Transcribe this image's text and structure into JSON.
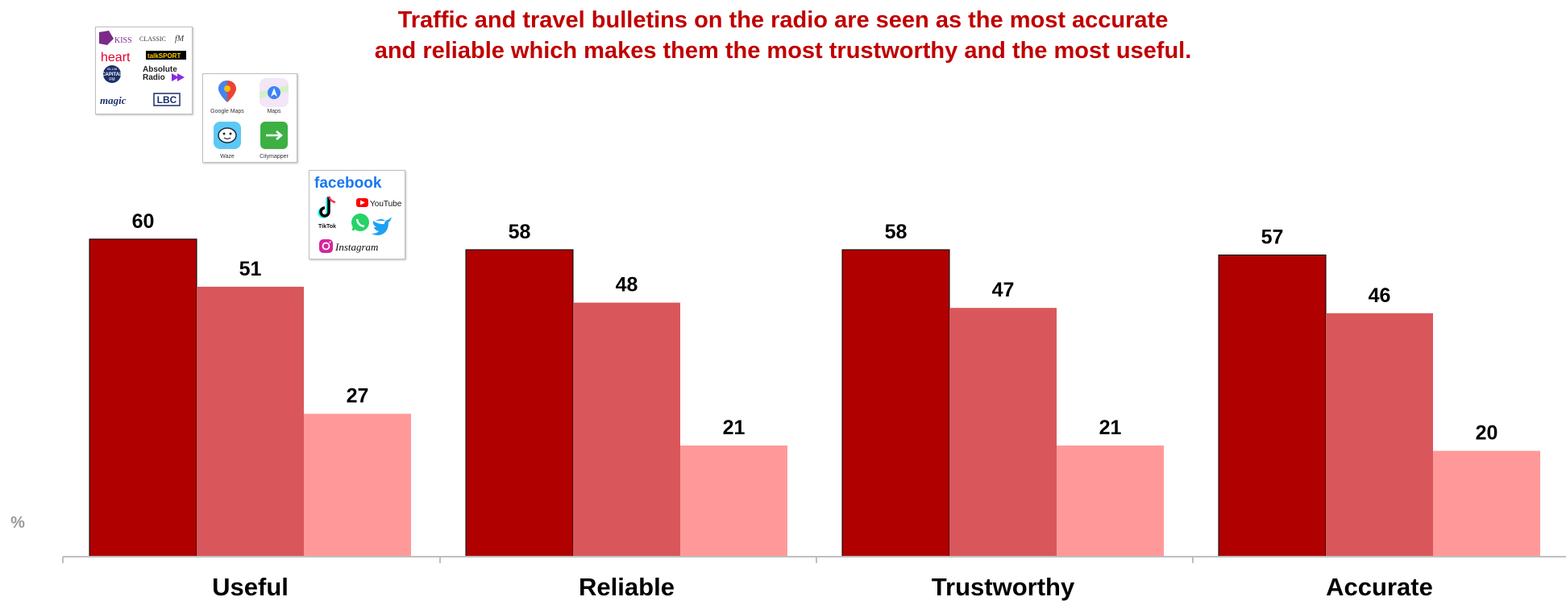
{
  "title_line1": "Traffic and travel bulletins on the radio are seen as the most accurate",
  "title_line2": "and reliable which makes them the most trustworthy and the most useful.",
  "unit_label": "%",
  "colors": {
    "title": "#c00000",
    "series1": "#b00000",
    "series2": "#d9575a",
    "series3": "#ff9999",
    "axis": "#bfbfbf"
  },
  "logos": {
    "radio": {
      "kiss": "KISS",
      "classic": "CLASSIC",
      "fm": "fM",
      "heart": "heart",
      "talksport": "talkSPORT",
      "capital_line1": "95-106",
      "capital_line2": "CAPITAL",
      "capital_line3": "FM",
      "absolute_line1": "Absolute",
      "absolute_line2": "Radio",
      "magic": "magic",
      "lbc": "LBC"
    },
    "apps": {
      "google_maps": "Google Maps",
      "maps": "Maps",
      "waze": "Waze",
      "citymapper": "Citymapper"
    },
    "social": {
      "facebook": "facebook",
      "youtube": "YouTube",
      "tiktok": "TikTok",
      "instagram": "Instagram"
    }
  },
  "chart_data": {
    "type": "bar",
    "categories": [
      "Useful",
      "Reliable",
      "Trustworthy",
      "Accurate"
    ],
    "series": [
      {
        "values": [
          60,
          58,
          58,
          57
        ],
        "color": "#b00000",
        "legend_icon": "radio-stations"
      },
      {
        "values": [
          51,
          48,
          47,
          46
        ],
        "color": "#d9575a",
        "legend_icon": "map-apps"
      },
      {
        "values": [
          27,
          21,
          21,
          20
        ],
        "color": "#ff9999",
        "legend_icon": "social-media"
      }
    ],
    "ylabel": "%",
    "ylim": [
      0,
      60
    ],
    "grid": false,
    "data_labels": true
  }
}
